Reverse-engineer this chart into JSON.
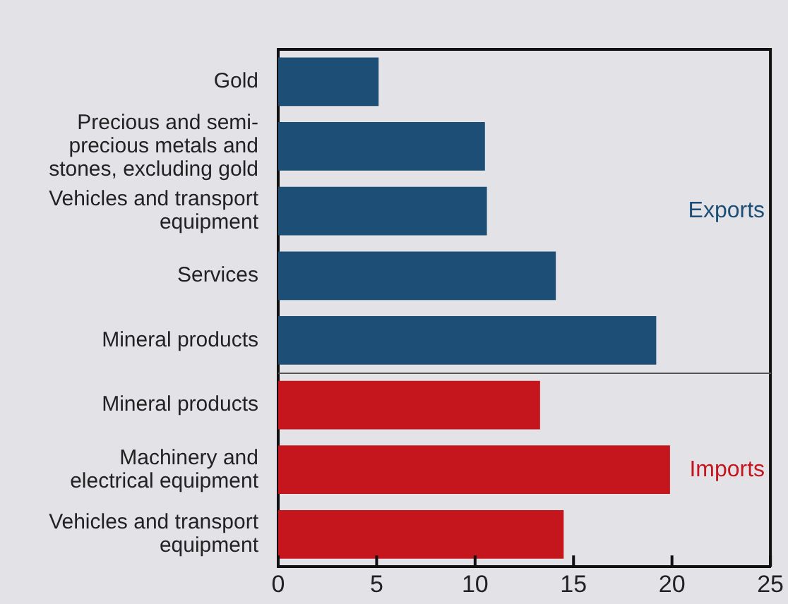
{
  "chart_data": {
    "type": "bar",
    "orientation": "horizontal",
    "categories": [
      "Gold",
      "Precious and semi-precious metals and stones, excluding gold",
      "Vehicles and transport equipment",
      "Services",
      "Mineral products",
      "Mineral products",
      "Machinery and electrical equipment",
      "Vehicles and transport equipment"
    ],
    "series": [
      {
        "name": "Exports",
        "color": "#1d4e75",
        "values": [
          5.1,
          10.5,
          10.6,
          14.1,
          19.2,
          null,
          null,
          null
        ]
      },
      {
        "name": "Imports",
        "color": "#c5161e",
        "values": [
          null,
          null,
          null,
          null,
          null,
          13.3,
          19.9,
          14.5
        ]
      }
    ],
    "xlim": [
      0,
      25
    ],
    "xticks": [
      0,
      5,
      10,
      15,
      20,
      25
    ],
    "grid": false,
    "legend": false
  }
}
